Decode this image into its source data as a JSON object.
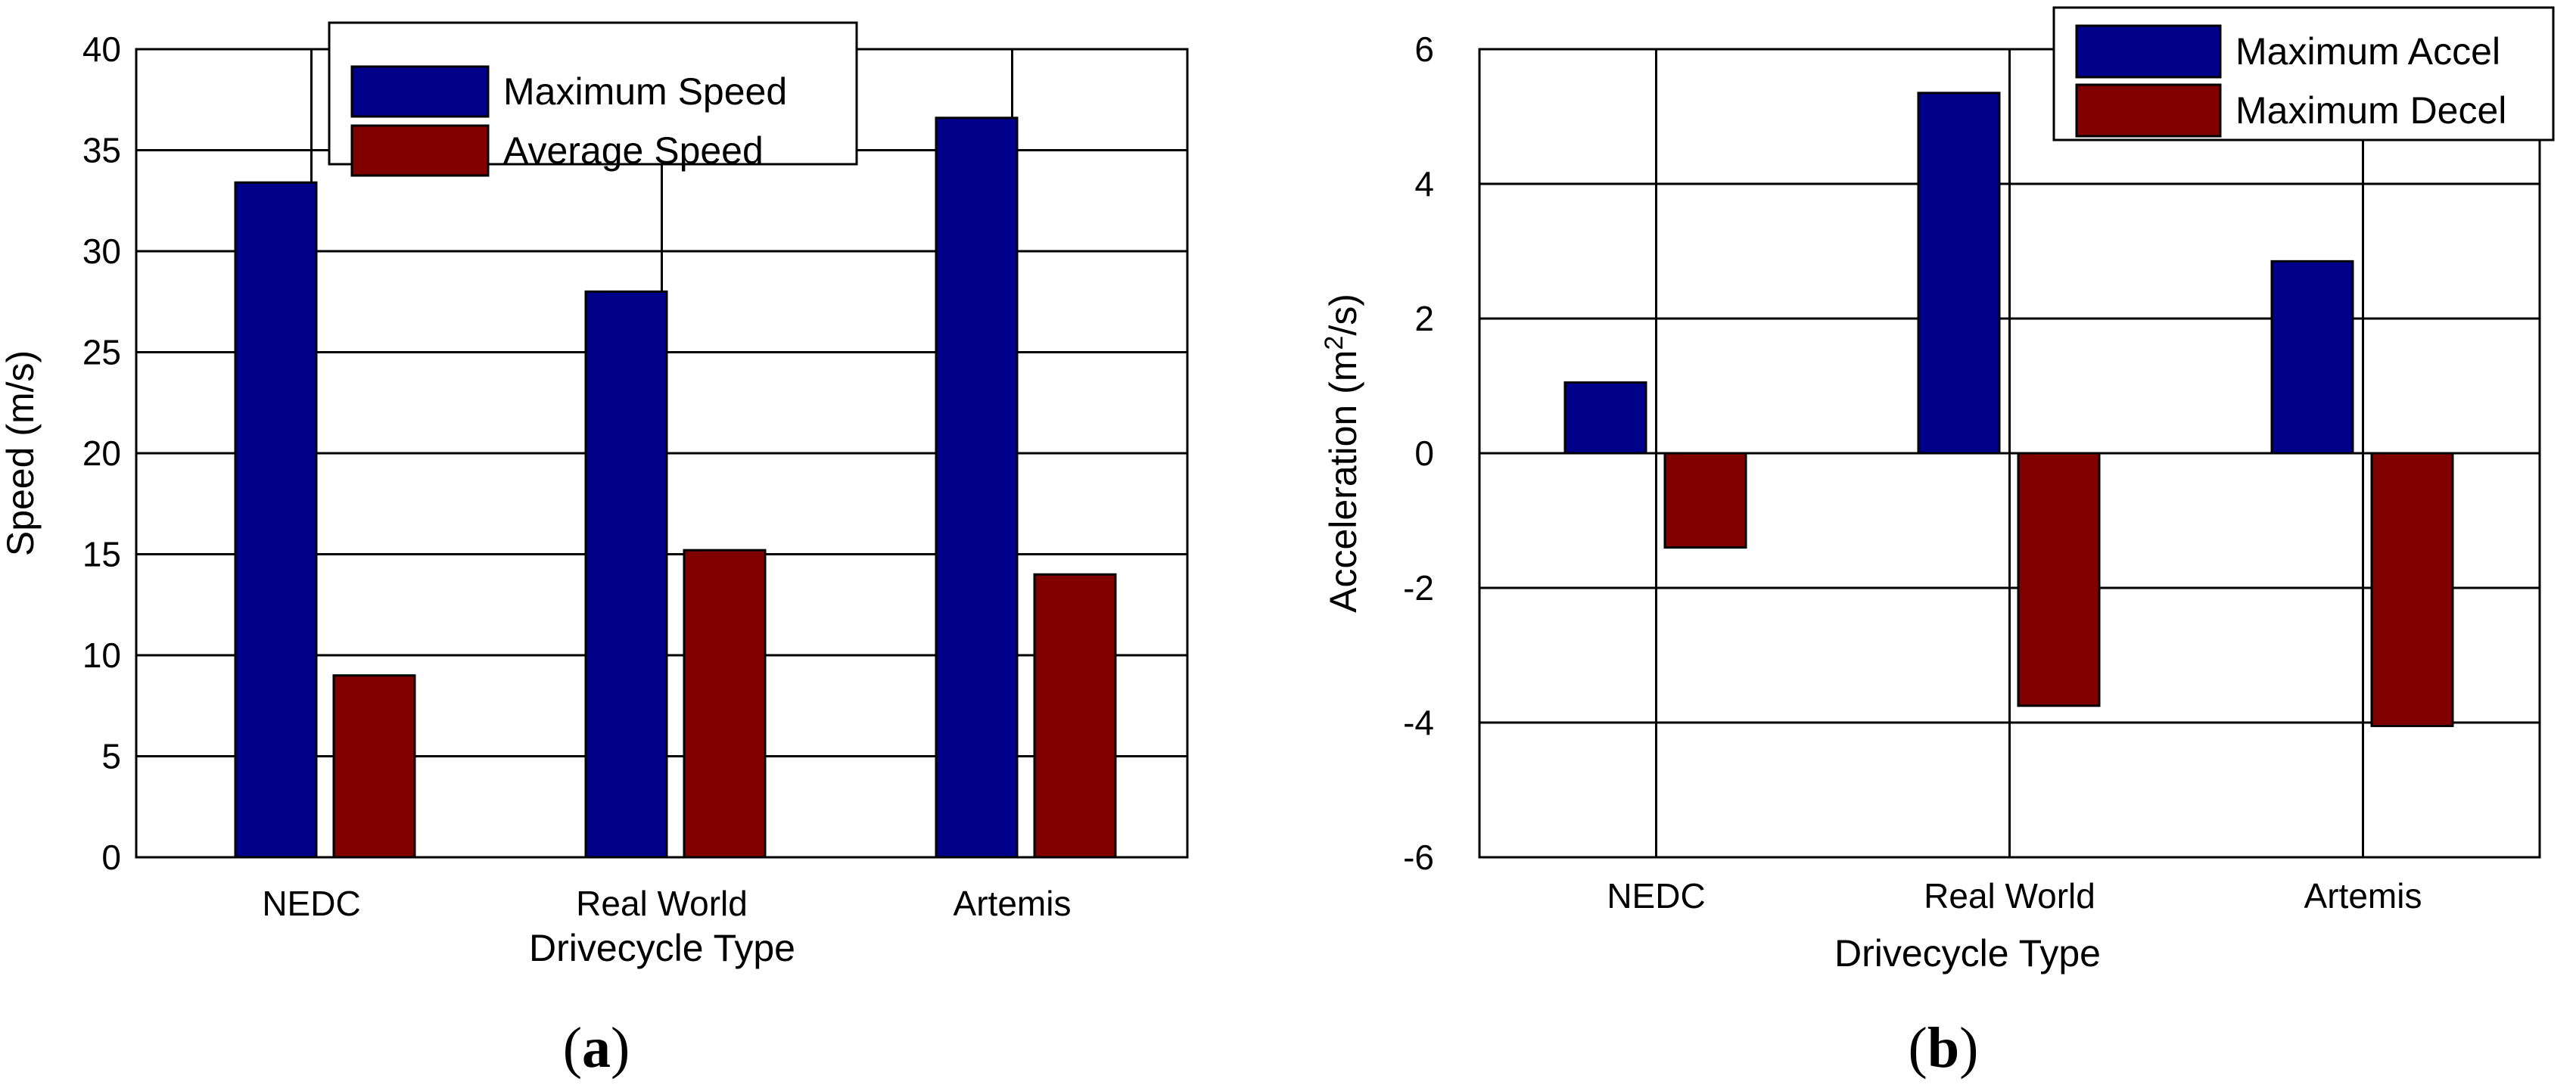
{
  "chart_data": [
    {
      "type": "bar",
      "panel_label": "a",
      "categories": [
        "NEDC",
        "Real World",
        "Artemis"
      ],
      "series": [
        {
          "name": "Maximum Speed",
          "color": "#00008B",
          "values": [
            33.4,
            28.0,
            36.6
          ]
        },
        {
          "name": "Average Speed",
          "color": "#800000",
          "values": [
            9.0,
            15.2,
            14.0
          ]
        }
      ],
      "xlabel": "Drivecycle Type",
      "ylabel": "Speed (m/s)",
      "ylim": [
        0,
        40
      ],
      "yticks": [
        0,
        5,
        10,
        15,
        20,
        25,
        30,
        35,
        40
      ],
      "grid": true,
      "legend_position": "top-center"
    },
    {
      "type": "bar",
      "panel_label": "b",
      "categories": [
        "NEDC",
        "Real World",
        "Artemis"
      ],
      "series": [
        {
          "name": "Maximum Accel",
          "color": "#00008B",
          "values": [
            1.05,
            5.35,
            2.85
          ]
        },
        {
          "name": "Maximum Decel",
          "color": "#800000",
          "values": [
            -1.4,
            -3.75,
            -4.05
          ]
        }
      ],
      "xlabel": "Drivecycle Type",
      "ylabel_main": "Acceleration (m",
      "ylabel_sup": "2",
      "ylabel_tail": "/s)",
      "ylim": [
        -6,
        6
      ],
      "yticks": [
        -6,
        -4,
        -2,
        0,
        2,
        4,
        6
      ],
      "grid": true,
      "legend_position": "top-right"
    }
  ]
}
